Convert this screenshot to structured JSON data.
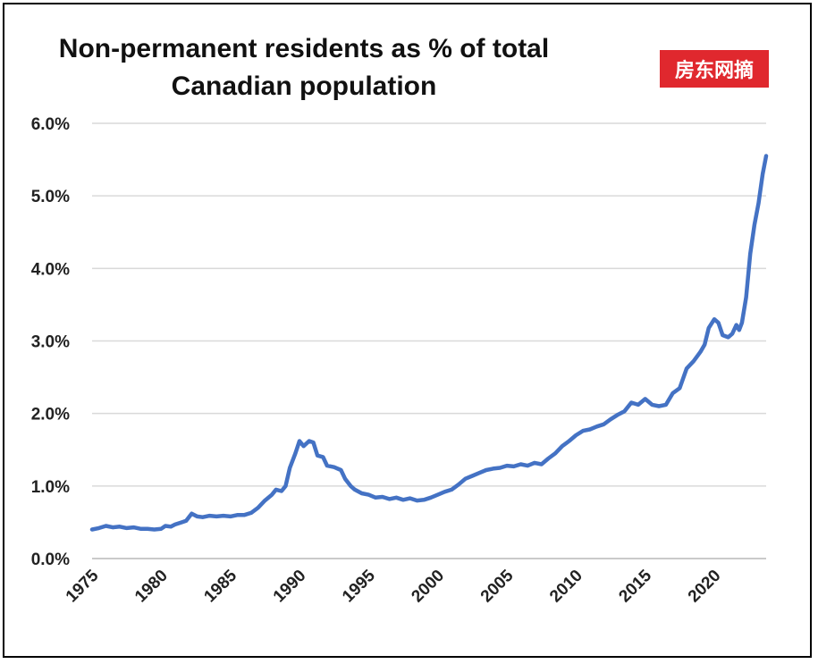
{
  "chart_data": {
    "type": "line",
    "title": "Non-permanent residents as % of total Canadian population",
    "title_lines": [
      "Non-permanent residents as % of total",
      "Canadian population"
    ],
    "watermark": "房东网摘",
    "xlabel": "",
    "ylabel": "",
    "xlim": [
      1975,
      2023.75
    ],
    "ylim": [
      0,
      6
    ],
    "grid": "horizontal",
    "legend": "none",
    "y_ticks": [
      {
        "value": 0,
        "label": "0.0%"
      },
      {
        "value": 1,
        "label": "1.0%"
      },
      {
        "value": 2,
        "label": "2.0%"
      },
      {
        "value": 3,
        "label": "3.0%"
      },
      {
        "value": 4,
        "label": "4.0%"
      },
      {
        "value": 5,
        "label": "5.0%"
      },
      {
        "value": 6,
        "label": "6.0%"
      }
    ],
    "x_ticks": [
      {
        "value": 1975,
        "label": "1975"
      },
      {
        "value": 1980,
        "label": "1980"
      },
      {
        "value": 1985,
        "label": "1985"
      },
      {
        "value": 1990,
        "label": "1990"
      },
      {
        "value": 1995,
        "label": "1995"
      },
      {
        "value": 2000,
        "label": "2000"
      },
      {
        "value": 2005,
        "label": "2005"
      },
      {
        "value": 2010,
        "label": "2010"
      },
      {
        "value": 2015,
        "label": "2015"
      },
      {
        "value": 2020,
        "label": "2020"
      }
    ],
    "series": [
      {
        "color": "#4472c4",
        "points": [
          [
            1975.0,
            0.4
          ],
          [
            1975.5,
            0.42
          ],
          [
            1976.0,
            0.45
          ],
          [
            1976.5,
            0.43
          ],
          [
            1977.0,
            0.44
          ],
          [
            1977.5,
            0.42
          ],
          [
            1978.0,
            0.43
          ],
          [
            1978.5,
            0.41
          ],
          [
            1979.0,
            0.41
          ],
          [
            1979.5,
            0.4
          ],
          [
            1980.0,
            0.41
          ],
          [
            1980.3,
            0.45
          ],
          [
            1980.7,
            0.44
          ],
          [
            1981.0,
            0.47
          ],
          [
            1981.5,
            0.5
          ],
          [
            1981.8,
            0.52
          ],
          [
            1982.2,
            0.62
          ],
          [
            1982.6,
            0.58
          ],
          [
            1983.0,
            0.57
          ],
          [
            1983.5,
            0.59
          ],
          [
            1984.0,
            0.58
          ],
          [
            1984.5,
            0.59
          ],
          [
            1985.0,
            0.58
          ],
          [
            1985.5,
            0.6
          ],
          [
            1986.0,
            0.6
          ],
          [
            1986.5,
            0.63
          ],
          [
            1987.0,
            0.7
          ],
          [
            1987.5,
            0.8
          ],
          [
            1988.0,
            0.88
          ],
          [
            1988.3,
            0.95
          ],
          [
            1988.7,
            0.93
          ],
          [
            1989.0,
            1.0
          ],
          [
            1989.3,
            1.25
          ],
          [
            1989.7,
            1.45
          ],
          [
            1990.0,
            1.62
          ],
          [
            1990.3,
            1.55
          ],
          [
            1990.7,
            1.62
          ],
          [
            1991.0,
            1.6
          ],
          [
            1991.3,
            1.42
          ],
          [
            1991.7,
            1.4
          ],
          [
            1992.0,
            1.28
          ],
          [
            1992.5,
            1.26
          ],
          [
            1993.0,
            1.22
          ],
          [
            1993.3,
            1.1
          ],
          [
            1993.7,
            1.0
          ],
          [
            1994.0,
            0.95
          ],
          [
            1994.5,
            0.9
          ],
          [
            1995.0,
            0.88
          ],
          [
            1995.5,
            0.84
          ],
          [
            1996.0,
            0.85
          ],
          [
            1996.5,
            0.82
          ],
          [
            1997.0,
            0.84
          ],
          [
            1997.5,
            0.81
          ],
          [
            1998.0,
            0.83
          ],
          [
            1998.5,
            0.8
          ],
          [
            1999.0,
            0.81
          ],
          [
            1999.5,
            0.84
          ],
          [
            2000.0,
            0.88
          ],
          [
            2000.5,
            0.92
          ],
          [
            2001.0,
            0.95
          ],
          [
            2001.5,
            1.02
          ],
          [
            2002.0,
            1.1
          ],
          [
            2002.5,
            1.14
          ],
          [
            2003.0,
            1.18
          ],
          [
            2003.5,
            1.22
          ],
          [
            2004.0,
            1.24
          ],
          [
            2004.5,
            1.25
          ],
          [
            2005.0,
            1.28
          ],
          [
            2005.5,
            1.27
          ],
          [
            2006.0,
            1.3
          ],
          [
            2006.5,
            1.28
          ],
          [
            2007.0,
            1.32
          ],
          [
            2007.5,
            1.3
          ],
          [
            2008.0,
            1.38
          ],
          [
            2008.5,
            1.45
          ],
          [
            2009.0,
            1.55
          ],
          [
            2009.5,
            1.62
          ],
          [
            2010.0,
            1.7
          ],
          [
            2010.5,
            1.76
          ],
          [
            2011.0,
            1.78
          ],
          [
            2011.5,
            1.82
          ],
          [
            2012.0,
            1.85
          ],
          [
            2012.5,
            1.92
          ],
          [
            2013.0,
            1.98
          ],
          [
            2013.5,
            2.03
          ],
          [
            2014.0,
            2.15
          ],
          [
            2014.5,
            2.12
          ],
          [
            2015.0,
            2.2
          ],
          [
            2015.5,
            2.12
          ],
          [
            2016.0,
            2.1
          ],
          [
            2016.5,
            2.12
          ],
          [
            2017.0,
            2.28
          ],
          [
            2017.5,
            2.35
          ],
          [
            2018.0,
            2.62
          ],
          [
            2018.5,
            2.72
          ],
          [
            2019.0,
            2.85
          ],
          [
            2019.3,
            2.95
          ],
          [
            2019.6,
            3.18
          ],
          [
            2020.0,
            3.3
          ],
          [
            2020.3,
            3.25
          ],
          [
            2020.6,
            3.08
          ],
          [
            2021.0,
            3.05
          ],
          [
            2021.3,
            3.1
          ],
          [
            2021.6,
            3.22
          ],
          [
            2021.8,
            3.15
          ],
          [
            2022.0,
            3.25
          ],
          [
            2022.3,
            3.6
          ],
          [
            2022.6,
            4.2
          ],
          [
            2022.9,
            4.6
          ],
          [
            2023.2,
            4.9
          ],
          [
            2023.5,
            5.3
          ],
          [
            2023.75,
            5.55
          ]
        ]
      }
    ]
  }
}
